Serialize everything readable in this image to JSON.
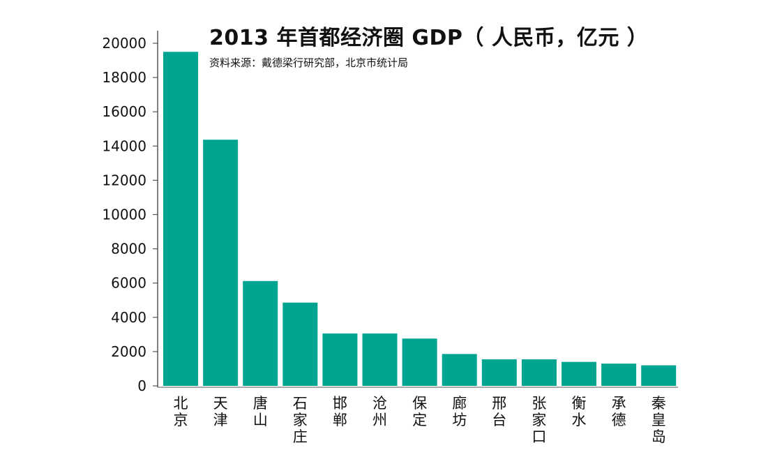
{
  "chart_data": {
    "type": "bar",
    "title": "2013 年首都经济圈 GDP（ 人民币，亿元 ）",
    "subtitle": "资料来源：戴德梁行研究部，北京市统计局",
    "categories": [
      "北京",
      "天津",
      "唐山",
      "石家庄",
      "邯郸",
      "沧州",
      "保定",
      "廊坊",
      "邢台",
      "张家口",
      "衡水",
      "承德",
      "秦皇岛"
    ],
    "values": [
      19500,
      14370,
      6120,
      4860,
      3060,
      3060,
      2760,
      1860,
      1550,
      1550,
      1400,
      1300,
      1200
    ],
    "ylim": [
      0,
      20000
    ],
    "yticks": [
      0,
      2000,
      4000,
      6000,
      8000,
      10000,
      12000,
      14000,
      16000,
      18000,
      20000
    ],
    "grid": false,
    "legend": "none",
    "bar_color": "#00a592"
  }
}
